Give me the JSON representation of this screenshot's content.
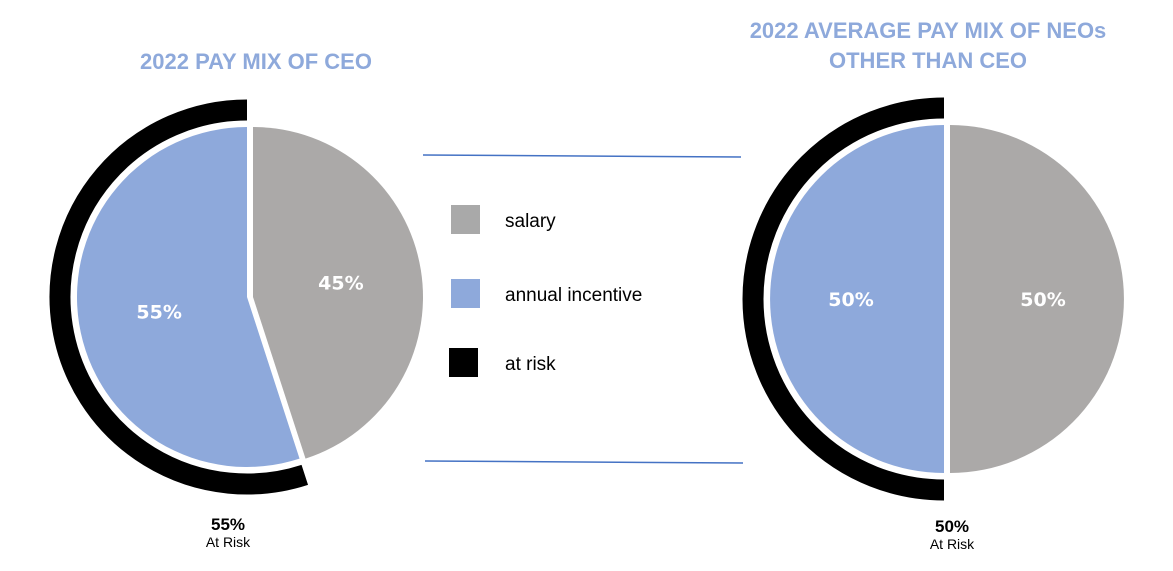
{
  "chart_data": [
    {
      "type": "pie",
      "title": "2022 PAY MIX OF CEO",
      "categories": [
        "salary",
        "annual incentive"
      ],
      "values": [
        45,
        55
      ],
      "value_labels": [
        "45%",
        "55%"
      ],
      "at_risk": {
        "value": 55,
        "pct_label": "55%",
        "label": "At Risk"
      }
    },
    {
      "type": "pie",
      "title_lines": [
        "2022 AVERAGE PAY MIX OF NEOs",
        "OTHER THAN CEO"
      ],
      "categories": [
        "salary",
        "annual incentive"
      ],
      "values": [
        50,
        50
      ],
      "value_labels": [
        "50%",
        "50%"
      ],
      "at_risk": {
        "value": 50,
        "pct_label": "50%",
        "label": "At Risk"
      }
    }
  ],
  "legend": [
    {
      "label": "salary",
      "color": "#A9A9A9"
    },
    {
      "label": "annual incentive",
      "color": "#8EA9DB"
    },
    {
      "label": "at risk",
      "color": "#000000"
    }
  ],
  "colors": {
    "salary": "#ABA9A8",
    "annual_incentive": "#8EA9DB",
    "at_risk": "#000000",
    "title": "#8EA9DB",
    "divider": "#4472C4"
  }
}
